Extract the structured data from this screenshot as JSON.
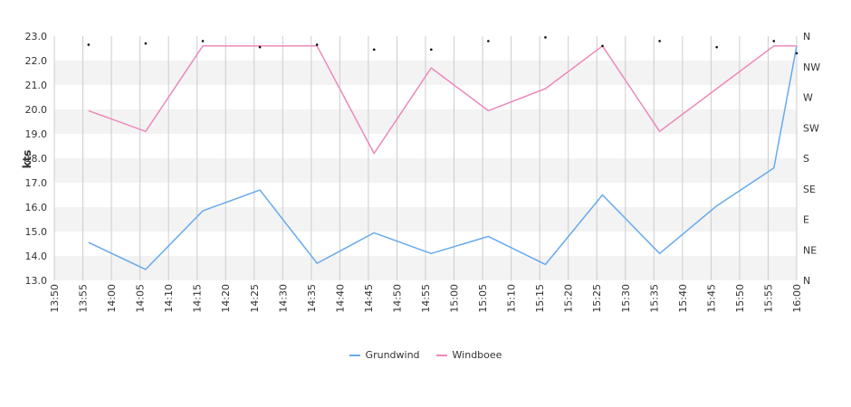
{
  "chart_data": {
    "type": "line",
    "ylabel": "kts",
    "ylim": [
      13.0,
      23.0
    ],
    "y_ticks": [
      "13.0",
      "14.0",
      "15.0",
      "16.0",
      "17.0",
      "18.0",
      "19.0",
      "20.0",
      "21.0",
      "22.0",
      "23.0"
    ],
    "right_axis_labels": [
      "N",
      "NE",
      "E",
      "SE",
      "S",
      "SW",
      "W",
      "NW",
      "N"
    ],
    "x_ticks": [
      "13:50",
      "13:55",
      "14:00",
      "14:05",
      "14:10",
      "14:15",
      "14:20",
      "14:25",
      "14:30",
      "14:35",
      "14:40",
      "14:45",
      "14:50",
      "14:55",
      "15:00",
      "15:05",
      "15:10",
      "15:15",
      "15:20",
      "15:25",
      "15:30",
      "15:35",
      "15:40",
      "15:45",
      "15:50",
      "15:55",
      "16:00"
    ],
    "x_start_minutes": 830,
    "x_end_minutes": 960,
    "grid": true,
    "legend_position": "bottom",
    "series": [
      {
        "name": "Grundwind",
        "color": "#66aaee",
        "points": [
          {
            "t": "13:56",
            "v": 14.55
          },
          {
            "t": "14:06",
            "v": 13.45
          },
          {
            "t": "14:16",
            "v": 15.85
          },
          {
            "t": "14:26",
            "v": 16.7
          },
          {
            "t": "14:36",
            "v": 13.7
          },
          {
            "t": "14:46",
            "v": 14.95
          },
          {
            "t": "14:56",
            "v": 14.1
          },
          {
            "t": "15:06",
            "v": 14.8
          },
          {
            "t": "15:16",
            "v": 13.65
          },
          {
            "t": "15:26",
            "v": 16.5
          },
          {
            "t": "15:36",
            "v": 14.1
          },
          {
            "t": "15:46",
            "v": 16.05
          },
          {
            "t": "15:56",
            "v": 17.6
          },
          {
            "t": "16:00",
            "v": 22.6
          }
        ]
      },
      {
        "name": "Windboee",
        "color": "#ee88bb",
        "points": [
          {
            "t": "13:56",
            "v": 19.95
          },
          {
            "t": "14:06",
            "v": 19.1
          },
          {
            "t": "14:16",
            "v": 22.6
          },
          {
            "t": "14:26",
            "v": 22.6
          },
          {
            "t": "14:36",
            "v": 22.6
          },
          {
            "t": "14:46",
            "v": 18.2
          },
          {
            "t": "14:56",
            "v": 21.7
          },
          {
            "t": "15:06",
            "v": 19.95
          },
          {
            "t": "15:16",
            "v": 20.85
          },
          {
            "t": "15:26",
            "v": 22.6
          },
          {
            "t": "15:36",
            "v": 19.1
          },
          {
            "t": "15:46",
            "v": 20.85
          },
          {
            "t": "15:56",
            "v": 22.6
          },
          {
            "t": "16:00",
            "v": 22.6
          }
        ]
      }
    ],
    "direction_points": [
      {
        "t": "13:56",
        "v": 22.65
      },
      {
        "t": "14:06",
        "v": 22.7
      },
      {
        "t": "14:16",
        "v": 22.8
      },
      {
        "t": "14:26",
        "v": 22.55
      },
      {
        "t": "14:36",
        "v": 22.65
      },
      {
        "t": "14:46",
        "v": 22.45
      },
      {
        "t": "14:56",
        "v": 22.45
      },
      {
        "t": "15:06",
        "v": 22.8
      },
      {
        "t": "15:16",
        "v": 22.95
      },
      {
        "t": "15:26",
        "v": 22.6
      },
      {
        "t": "15:36",
        "v": 22.8
      },
      {
        "t": "15:46",
        "v": 22.55
      },
      {
        "t": "15:56",
        "v": 22.8
      },
      {
        "t": "16:00",
        "v": 22.3
      }
    ]
  }
}
